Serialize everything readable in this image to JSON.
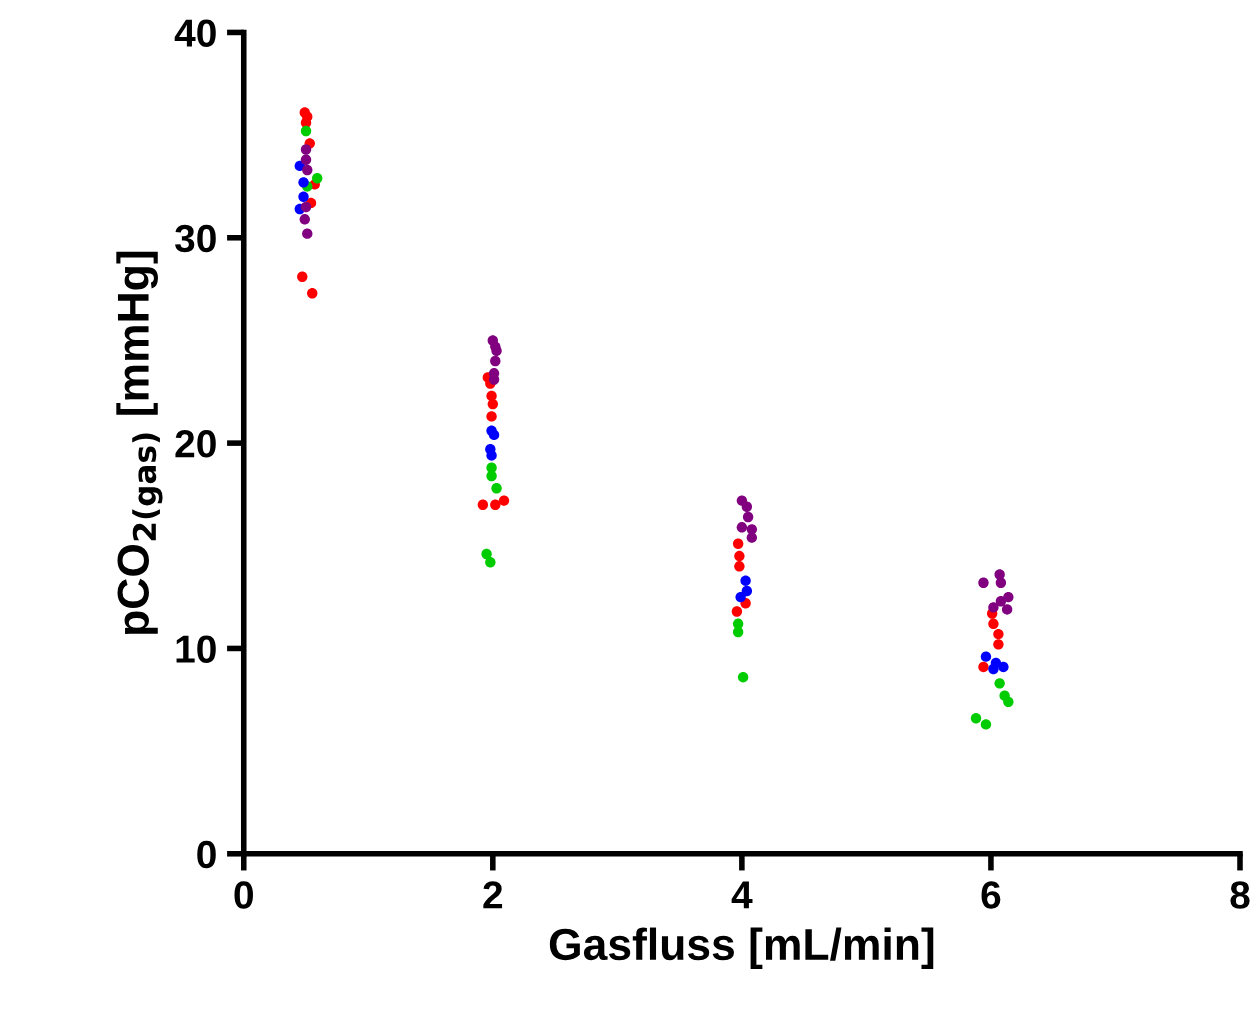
{
  "chart_data": {
    "type": "scatter",
    "xlabel": "Gasfluss [mL/min]",
    "ylabel": "pCO$_{2(gas)}$ [mmHg]",
    "xlim": [
      0,
      8
    ],
    "xticks": [
      0,
      2,
      4,
      6,
      8
    ],
    "ylim": [
      0,
      40
    ],
    "yticks": [
      0,
      10,
      20,
      30,
      40
    ],
    "grid": false,
    "legend": false,
    "marker": "circle",
    "series": [
      {
        "color": "#ff0000",
        "x": [
          0.49,
          0.51,
          0.5,
          0.53,
          0.57,
          0.54,
          0.47,
          0.55,
          1.96,
          1.98,
          1.99,
          2.0,
          1.99,
          1.92,
          2.02,
          2.09,
          3.97,
          3.98,
          3.98,
          4.03,
          3.96,
          6.01,
          6.02,
          6.06,
          6.06,
          5.94
        ],
        "values": [
          36.1,
          35.9,
          35.6,
          34.6,
          32.6,
          31.7,
          28.1,
          27.3,
          23.2,
          22.9,
          22.3,
          21.9,
          21.3,
          17.0,
          17.0,
          17.2,
          15.1,
          14.5,
          14.0,
          12.2,
          11.8,
          11.7,
          11.2,
          10.7,
          10.2,
          9.1
        ]
      },
      {
        "color": "#00cc00",
        "x": [
          0.5,
          0.59,
          0.51,
          1.99,
          1.99,
          2.03,
          1.95,
          1.98,
          3.97,
          3.97,
          4.01,
          6.07,
          6.11,
          6.14,
          5.88,
          5.96
        ],
        "values": [
          35.2,
          32.9,
          32.5,
          18.8,
          18.4,
          17.8,
          14.6,
          14.2,
          11.2,
          10.8,
          8.6,
          8.3,
          7.7,
          7.4,
          6.6,
          6.3
        ]
      },
      {
        "color": "#0000ff",
        "x": [
          0.45,
          0.48,
          0.48,
          0.45,
          1.99,
          2.01,
          1.98,
          1.99,
          4.03,
          4.04,
          3.99,
          5.96,
          6.04,
          6.1,
          6.02
        ],
        "values": [
          33.5,
          32.7,
          32.0,
          31.4,
          20.6,
          20.4,
          19.7,
          19.4,
          13.3,
          12.8,
          12.5,
          9.6,
          9.3,
          9.1,
          9.0
        ]
      },
      {
        "color": "#800080",
        "x": [
          0.5,
          0.5,
          0.51,
          0.5,
          0.49,
          0.51,
          2.0,
          2.02,
          2.03,
          2.02,
          2.01,
          2.01,
          4.0,
          4.04,
          4.05,
          4.0,
          4.08,
          4.08,
          6.07,
          5.94,
          6.08,
          6.14,
          6.08,
          6.02,
          6.13
        ],
        "values": [
          34.3,
          33.8,
          33.3,
          31.5,
          30.9,
          30.2,
          25.0,
          24.7,
          24.5,
          24.0,
          23.4,
          23.1,
          17.2,
          16.9,
          16.4,
          15.9,
          15.8,
          15.4,
          13.6,
          13.2,
          13.2,
          12.5,
          12.3,
          12.0,
          11.9
        ]
      }
    ]
  }
}
